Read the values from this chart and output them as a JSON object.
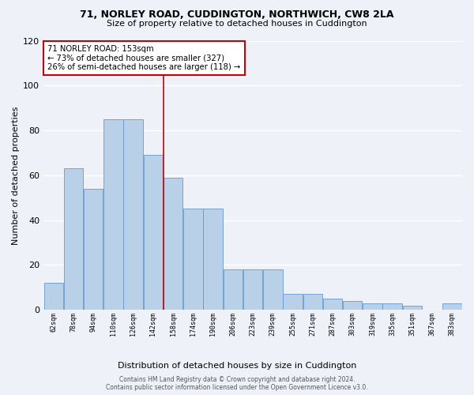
{
  "title1": "71, NORLEY ROAD, CUDDINGTON, NORTHWICH, CW8 2LA",
  "title2": "Size of property relative to detached houses in Cuddington",
  "xlabel": "Distribution of detached houses by size in Cuddington",
  "ylabel": "Number of detached properties",
  "bar_labels": [
    "62sqm",
    "78sqm",
    "94sqm",
    "110sqm",
    "126sqm",
    "142sqm",
    "158sqm",
    "174sqm",
    "190sqm",
    "206sqm",
    "223sqm",
    "239sqm",
    "255sqm",
    "271sqm",
    "287sqm",
    "303sqm",
    "319sqm",
    "335sqm",
    "351sqm",
    "367sqm",
    "383sqm"
  ],
  "bar_values": [
    12,
    63,
    54,
    85,
    85,
    69,
    59,
    45,
    45,
    18,
    18,
    18,
    7,
    7,
    5,
    4,
    3,
    3,
    2,
    0,
    3
  ],
  "bar_color": "#b8d0e8",
  "bar_edge_color": "#6699cc",
  "annotation_text_line1": "71 NORLEY ROAD: 153sqm",
  "annotation_text_line2": "← 73% of detached houses are smaller (327)",
  "annotation_text_line3": "26% of semi-detached houses are larger (118) →",
  "annotation_box_color": "#ffffff",
  "annotation_box_edge": "#cc0000",
  "vline_color": "#cc0000",
  "ylim": [
    0,
    120
  ],
  "yticks": [
    0,
    20,
    40,
    60,
    80,
    100,
    120
  ],
  "footer1": "Contains HM Land Registry data © Crown copyright and database right 2024.",
  "footer2": "Contains public sector information licensed under the Open Government Licence v3.0.",
  "bg_color": "#eef2f8",
  "grid_color": "#ffffff"
}
